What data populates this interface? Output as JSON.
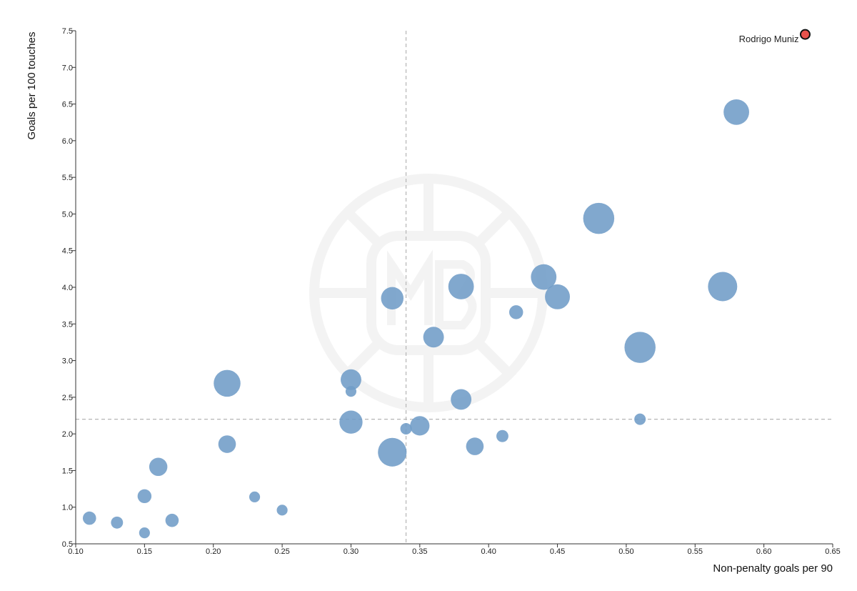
{
  "chart_data": {
    "type": "scatter",
    "xlabel": "Non-penalty goals per 90",
    "ylabel": "Goals per 100 touches",
    "xlim": [
      0.1,
      0.65
    ],
    "ylim": [
      0.5,
      7.5
    ],
    "x_ticks": [
      "0.10",
      "0.15",
      "0.20",
      "0.25",
      "0.30",
      "0.35",
      "0.40",
      "0.45",
      "0.50",
      "0.55",
      "0.60",
      "0.65"
    ],
    "y_ticks": [
      "0.5",
      "1.0",
      "1.5",
      "2.0",
      "2.5",
      "3.0",
      "3.5",
      "4.0",
      "4.5",
      "5.0",
      "5.5",
      "6.0",
      "6.5",
      "7.0",
      "7.5"
    ],
    "reference_lines": {
      "x": 0.34,
      "y": 2.2,
      "style": "dashed"
    },
    "grid": false,
    "point_color": "#6f9cc7",
    "highlight_color": "#e8524c",
    "points": [
      {
        "x": 0.11,
        "y": 0.85,
        "size": 1
      },
      {
        "x": 0.13,
        "y": 0.79,
        "size": 0.8
      },
      {
        "x": 0.15,
        "y": 0.65,
        "size": 0.6
      },
      {
        "x": 0.15,
        "y": 1.15,
        "size": 1.1
      },
      {
        "x": 0.16,
        "y": 1.55,
        "size": 1.8
      },
      {
        "x": 0.17,
        "y": 0.82,
        "size": 1
      },
      {
        "x": 0.21,
        "y": 2.69,
        "size": 3.2
      },
      {
        "x": 0.21,
        "y": 1.86,
        "size": 1.7
      },
      {
        "x": 0.23,
        "y": 1.14,
        "size": 0.6
      },
      {
        "x": 0.25,
        "y": 0.96,
        "size": 0.6
      },
      {
        "x": 0.3,
        "y": 2.74,
        "size": 2.2
      },
      {
        "x": 0.3,
        "y": 2.58,
        "size": 0.6
      },
      {
        "x": 0.3,
        "y": 2.16,
        "size": 2.6
      },
      {
        "x": 0.33,
        "y": 3.85,
        "size": 2.5
      },
      {
        "x": 0.33,
        "y": 1.75,
        "size": 3.5
      },
      {
        "x": 0.34,
        "y": 2.07,
        "size": 0.7
      },
      {
        "x": 0.35,
        "y": 2.11,
        "size": 2.0
      },
      {
        "x": 0.36,
        "y": 3.32,
        "size": 2.2
      },
      {
        "x": 0.38,
        "y": 4.01,
        "size": 3.0
      },
      {
        "x": 0.38,
        "y": 2.47,
        "size": 2.2
      },
      {
        "x": 0.39,
        "y": 1.83,
        "size": 1.7
      },
      {
        "x": 0.41,
        "y": 1.97,
        "size": 0.8
      },
      {
        "x": 0.42,
        "y": 3.66,
        "size": 1.1
      },
      {
        "x": 0.44,
        "y": 4.14,
        "size": 3.0
      },
      {
        "x": 0.45,
        "y": 3.87,
        "size": 2.9
      },
      {
        "x": 0.48,
        "y": 4.94,
        "size": 3.9
      },
      {
        "x": 0.51,
        "y": 3.18,
        "size": 3.9
      },
      {
        "x": 0.51,
        "y": 2.2,
        "size": 0.7
      },
      {
        "x": 0.57,
        "y": 4.01,
        "size": 3.6
      },
      {
        "x": 0.58,
        "y": 6.39,
        "size": 3.0
      }
    ],
    "highlight": {
      "label": "Rodrigo Muniz",
      "x": 0.63,
      "y": 7.45
    }
  }
}
